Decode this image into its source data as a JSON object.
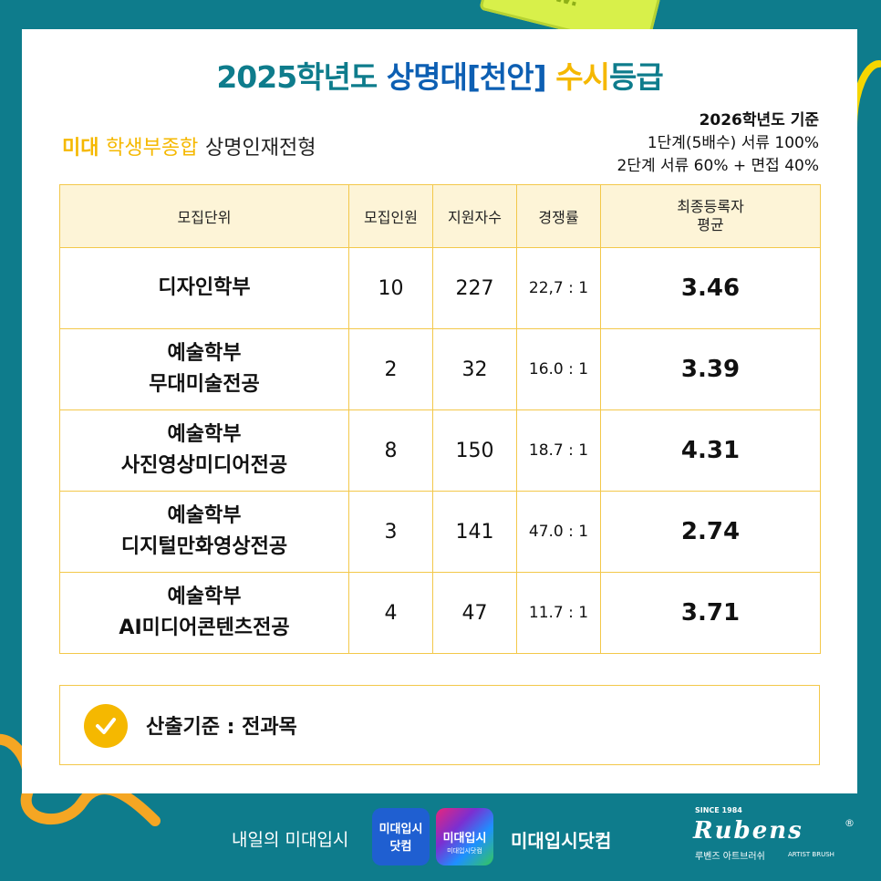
{
  "header": {
    "title_part1": "2025학년도",
    "title_part2": "상명대[천안]",
    "title_part3": "수시",
    "title_part4": "등급"
  },
  "subtitle": {
    "part1": "미대",
    "part2": "학생부종합",
    "part3": "상명인재전형"
  },
  "criteria": {
    "line1": "2026학년도 기준",
    "line2": "1단계(5배수) 서류 100%",
    "line3": "2단계 서류 60% + 면접 40%"
  },
  "table": {
    "headers": {
      "unit": "모집단위",
      "quota": "모집인원",
      "applicants": "지원자수",
      "ratio": "경쟁률",
      "avg_line1": "최종등록자",
      "avg_line2": "평균"
    },
    "rows": [
      {
        "unit_line1": "디자인학부",
        "unit_line2": "",
        "quota": "10",
        "applicants": "227",
        "ratio": "22,7 : 1",
        "avg": "3.46"
      },
      {
        "unit_line1": "예술학부",
        "unit_line2": "무대미술전공",
        "quota": "2",
        "applicants": "32",
        "ratio": "16.0 : 1",
        "avg": "3.39"
      },
      {
        "unit_line1": "예술학부",
        "unit_line2": "사진영상미디어전공",
        "quota": "8",
        "applicants": "150",
        "ratio": "18.7 : 1",
        "avg": "4.31"
      },
      {
        "unit_line1": "예술학부",
        "unit_line2": "디지털만화영상전공",
        "quota": "3",
        "applicants": "141",
        "ratio": "47.0 : 1",
        "avg": "2.74"
      },
      {
        "unit_line1": "예술학부",
        "unit_line2": "AI미디어콘텐츠전공",
        "quota": "4",
        "applicants": "47",
        "ratio": "11.7 : 1",
        "avg": "3.71"
      }
    ]
  },
  "note": {
    "text": "산출기준 : 전과목",
    "icon": "check-circle-icon"
  },
  "footer": {
    "slogan": "내일의 미대입시",
    "logo_blue_line1": "미대입시",
    "logo_blue_line2": "닷컴",
    "logo_grad_line1": "미대입시",
    "logo_grad_line2": "미대입시닷컴",
    "brand": "미대입시닷컴",
    "rubens_since": "SINCE 1984",
    "rubens_name": "Rubens",
    "rubens_reg": "®",
    "rubens_kr": "루벤즈 아트브러쉬",
    "rubens_en": "ARTIST BRUSH"
  },
  "colors": {
    "background": "#0e7c8c",
    "accent_yellow": "#f5b800",
    "title_blue": "#0d5fb3",
    "table_border": "#f3c84a",
    "header_fill": "#fdf4d7"
  }
}
